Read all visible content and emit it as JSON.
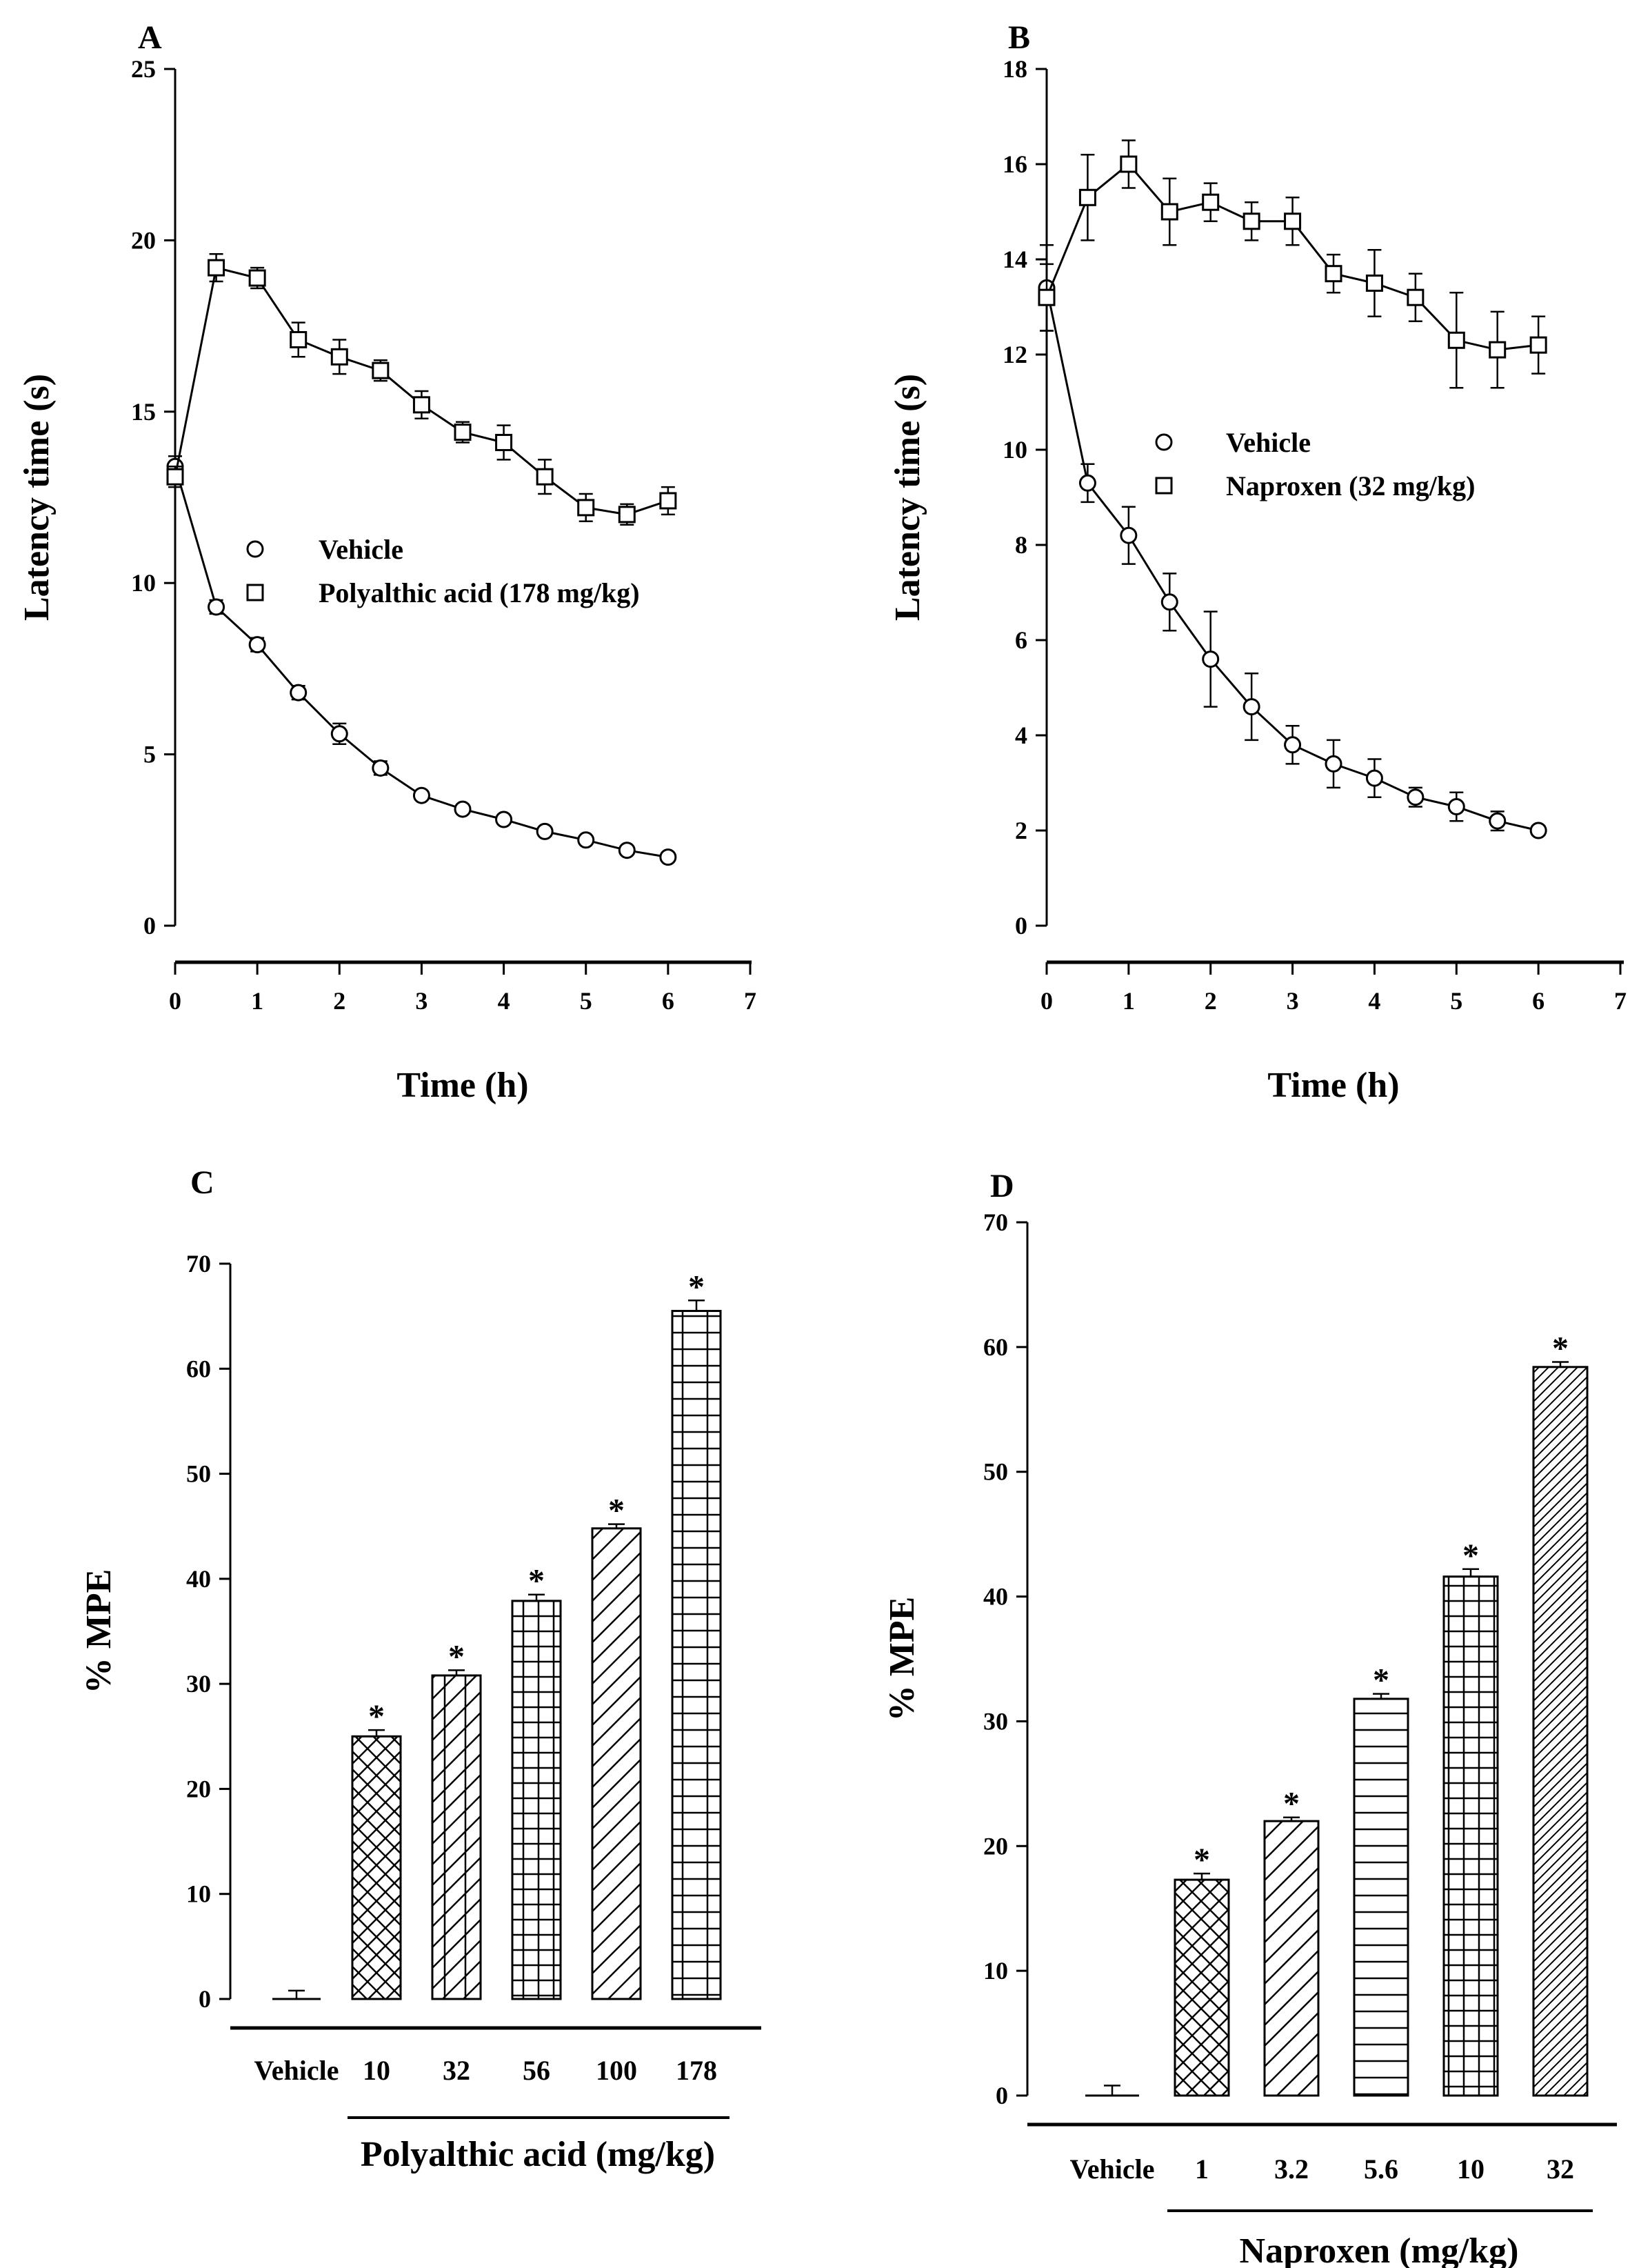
{
  "chart_data": [
    {
      "panel": "A",
      "type": "line",
      "xlabel": "Time (h)",
      "ylabel": "Latency time (s)",
      "xlim": [
        0,
        7
      ],
      "ylim": [
        0,
        25
      ],
      "xticks": [
        0,
        1,
        2,
        3,
        4,
        5,
        6,
        7
      ],
      "yticks": [
        0,
        5,
        10,
        15,
        20,
        25
      ],
      "legend_position": "center",
      "series": [
        {
          "name": "Vehicle",
          "marker": "circle",
          "x": [
            0,
            0.5,
            1,
            1.5,
            2,
            2.5,
            3,
            3.5,
            4,
            4.5,
            5,
            5.5,
            6
          ],
          "y": [
            13.4,
            9.3,
            8.2,
            6.8,
            5.6,
            4.6,
            3.8,
            3.4,
            3.1,
            2.75,
            2.5,
            2.2,
            2.0
          ],
          "err": [
            0.3,
            0.2,
            0.2,
            0.2,
            0.3,
            0.2,
            0.1,
            0.1,
            0.1,
            0.1,
            0.1,
            0.1,
            0.1
          ]
        },
        {
          "name": "Polyalthic acid (178 mg/kg)",
          "marker": "square",
          "x": [
            0,
            0.5,
            1,
            1.5,
            2,
            2.5,
            3,
            3.5,
            4,
            4.5,
            5,
            5.5,
            6
          ],
          "y": [
            13.1,
            19.2,
            18.9,
            17.1,
            16.6,
            16.2,
            15.2,
            14.4,
            14.1,
            13.1,
            12.2,
            12.0,
            12.4
          ],
          "err": [
            0.3,
            0.4,
            0.3,
            0.5,
            0.5,
            0.3,
            0.4,
            0.3,
            0.5,
            0.5,
            0.4,
            0.3,
            0.4
          ]
        }
      ]
    },
    {
      "panel": "B",
      "type": "line",
      "xlabel": "Time (h)",
      "ylabel": "Latency time (s)",
      "xlim": [
        0,
        7
      ],
      "ylim": [
        0,
        18
      ],
      "xticks": [
        0,
        1,
        2,
        3,
        4,
        5,
        6,
        7
      ],
      "yticks": [
        0,
        2,
        4,
        6,
        8,
        10,
        12,
        14,
        16,
        18
      ],
      "legend_position": "center-left",
      "series": [
        {
          "name": "Vehicle",
          "marker": "circle",
          "x": [
            0,
            0.5,
            1,
            1.5,
            2,
            2.5,
            3,
            3.5,
            4,
            4.5,
            5,
            5.5,
            6
          ],
          "y": [
            13.4,
            9.3,
            8.2,
            6.8,
            5.6,
            4.6,
            3.8,
            3.4,
            3.1,
            2.7,
            2.5,
            2.2,
            2.0
          ],
          "err": [
            0.9,
            0.4,
            0.6,
            0.6,
            1.0,
            0.7,
            0.4,
            0.5,
            0.4,
            0.2,
            0.3,
            0.2,
            0.1
          ]
        },
        {
          "name": "Naproxen (32 mg/kg)",
          "marker": "square",
          "x": [
            0,
            0.5,
            1,
            1.5,
            2,
            2.5,
            3,
            3.5,
            4,
            4.5,
            5,
            5.5,
            6
          ],
          "y": [
            13.2,
            15.3,
            16.0,
            15.0,
            15.2,
            14.8,
            14.8,
            13.7,
            13.5,
            13.2,
            12.3,
            12.1,
            12.2
          ],
          "err": [
            0.7,
            0.9,
            0.5,
            0.7,
            0.4,
            0.4,
            0.5,
            0.4,
            0.7,
            0.5,
            1.0,
            0.8,
            0.6
          ]
        }
      ]
    },
    {
      "panel": "C",
      "type": "bar",
      "ylabel": "% MPE",
      "group_label": "Polyalthic acid (mg/kg)",
      "ylim": [
        0,
        70
      ],
      "yticks": [
        0,
        10,
        20,
        30,
        40,
        50,
        60,
        70
      ],
      "categories": [
        "Vehicle",
        "10",
        "32",
        "56",
        "100",
        "178"
      ],
      "values": [
        0,
        25.0,
        30.8,
        37.9,
        44.8,
        65.5
      ],
      "err": [
        0.8,
        0.6,
        0.5,
        0.6,
        0.4,
        1.0
      ],
      "significance": [
        "",
        "*",
        "*",
        "*",
        "*",
        "*"
      ],
      "patterns": [
        "none",
        "crosshatch",
        "vertical-diagonal",
        "grid",
        "diagonal",
        "horizontal-grid"
      ]
    },
    {
      "panel": "D",
      "type": "bar",
      "ylabel": "% MPE",
      "group_label": "Naproxen (mg/kg)",
      "ylim": [
        0,
        70
      ],
      "yticks": [
        0,
        10,
        20,
        30,
        40,
        50,
        60,
        70
      ],
      "categories": [
        "Vehicle",
        "1",
        "3.2",
        "5.6",
        "10",
        "32"
      ],
      "values": [
        0,
        17.3,
        22.0,
        31.8,
        41.6,
        58.4
      ],
      "err": [
        0.8,
        0.5,
        0.3,
        0.4,
        0.6,
        0.4
      ],
      "significance": [
        "",
        "*",
        "*",
        "*",
        "*",
        "*"
      ],
      "patterns": [
        "none",
        "crosshatch",
        "diagonal",
        "horizontal",
        "grid",
        "fine-diagonal"
      ]
    }
  ]
}
